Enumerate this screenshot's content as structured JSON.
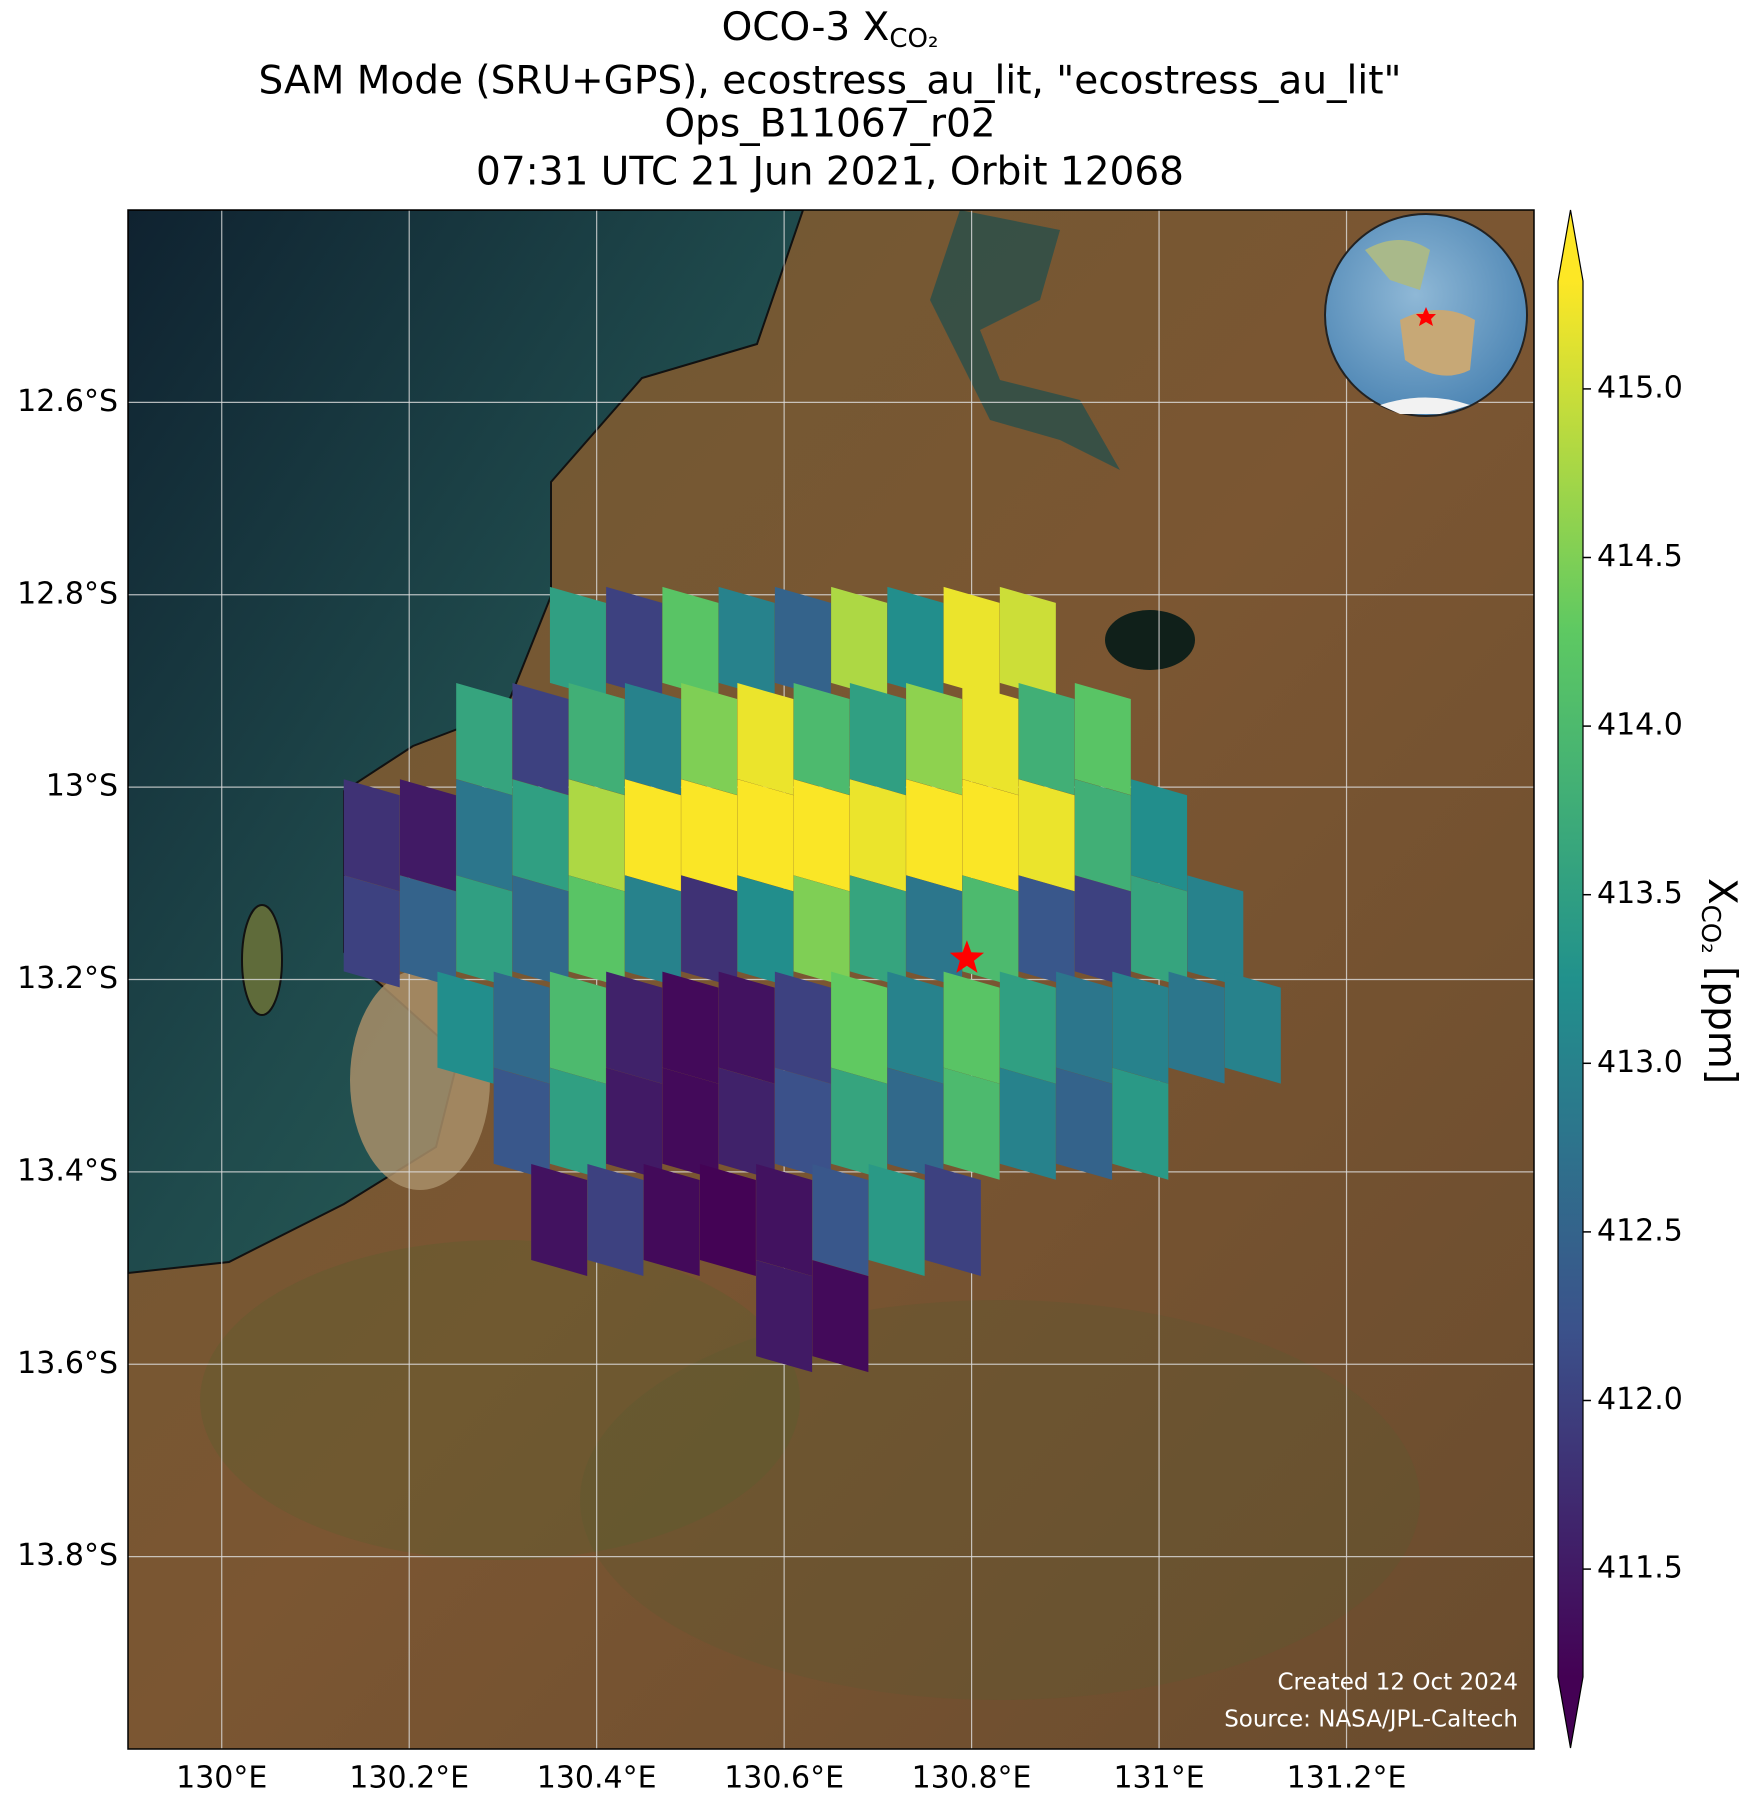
{
  "chart_data": {
    "type": "map",
    "title": [
      "OCO-3 X",
      "CO₂",
      "SAM Mode (SRU+GPS), ecostress_au_lit, \"ecostress_au_lit\"",
      "Ops_B11067_r02",
      "07:31 UTC 21 Jun 2021, Orbit 12068"
    ],
    "xlim": [
      129.9,
      131.4
    ],
    "ylim": [
      -14.0,
      -12.4
    ],
    "xticks": [
      {
        "value": 130.0,
        "label": "130°E"
      },
      {
        "value": 130.2,
        "label": "130.2°E"
      },
      {
        "value": 130.4,
        "label": "130.4°E"
      },
      {
        "value": 130.6,
        "label": "130.6°E"
      },
      {
        "value": 130.8,
        "label": "130.8°E"
      },
      {
        "value": 131.0,
        "label": "131°E"
      },
      {
        "value": 131.2,
        "label": "131.2°E"
      }
    ],
    "yticks": [
      {
        "value": -12.6,
        "label": "12.6°S"
      },
      {
        "value": -12.8,
        "label": "12.8°S"
      },
      {
        "value": -13.0,
        "label": "13°S"
      },
      {
        "value": -13.2,
        "label": "13.2°S"
      },
      {
        "value": -13.4,
        "label": "13.4°S"
      },
      {
        "value": -13.6,
        "label": "13.6°S"
      },
      {
        "value": -13.8,
        "label": "13.8°S"
      }
    ],
    "grid": true,
    "colormap": "viridis",
    "clim": [
      411.18,
      415.32
    ],
    "cticks": [
      {
        "value": 415.0,
        "label": "415.0"
      },
      414.5,
      {
        "value": 414.0,
        "label": "414.0"
      },
      413.5,
      {
        "value": 413.0,
        "label": "413.0"
      },
      412.5,
      {
        "value": 412.0,
        "label": "412.0"
      },
      411.5
    ],
    "colorbar_label": [
      "X",
      "CO₂",
      " [ppm]"
    ],
    "target": {
      "lon": 130.795,
      "lat": -13.178,
      "color": "#ff0000"
    },
    "rows": [
      {
        "lat": -12.85,
        "lon": [
          130.38,
          130.44,
          130.5,
          130.56,
          130.62,
          130.68,
          130.74,
          130.8,
          130.86
        ],
        "values": [
          413.5,
          412.0,
          414.2,
          413.0,
          412.5,
          414.8,
          413.2,
          415.2,
          415.0
        ]
      },
      {
        "lat": -12.95,
        "lon": [
          130.28,
          130.34,
          130.4,
          130.46,
          130.52,
          130.58,
          130.64,
          130.7,
          130.76,
          130.82,
          130.88,
          130.94
        ],
        "values": [
          413.6,
          412.0,
          413.8,
          413.0,
          414.5,
          415.2,
          414.0,
          413.5,
          414.6,
          415.2,
          413.8,
          414.2
        ]
      },
      {
        "lat": -13.05,
        "lon": [
          130.16,
          130.22,
          130.28,
          130.34,
          130.4,
          130.46,
          130.52,
          130.58,
          130.64,
          130.7,
          130.76,
          130.82,
          130.88,
          130.94,
          131.0
        ],
        "values": [
          411.8,
          411.5,
          412.8,
          413.5,
          414.8,
          415.3,
          415.3,
          415.3,
          415.3,
          415.2,
          415.3,
          415.3,
          415.2,
          413.8,
          413.2
        ]
      },
      {
        "lat": -13.15,
        "lon": [
          130.16,
          130.22,
          130.28,
          130.34,
          130.4,
          130.46,
          130.52,
          130.58,
          130.64,
          130.7,
          130.76,
          130.82,
          130.88,
          130.94,
          131.0,
          131.06
        ],
        "values": [
          412.0,
          412.5,
          413.5,
          412.6,
          414.2,
          413.0,
          411.8,
          413.2,
          414.5,
          413.6,
          412.8,
          414.0,
          412.3,
          412.0,
          413.6,
          413.0
        ]
      },
      {
        "lat": -13.25,
        "lon": [
          130.26,
          130.32,
          130.38,
          130.44,
          130.5,
          130.56,
          130.62,
          130.68,
          130.74,
          130.8,
          130.86,
          130.92,
          130.98,
          131.04,
          131.1
        ],
        "values": [
          413.2,
          412.6,
          414.0,
          411.6,
          411.3,
          411.4,
          412.0,
          414.3,
          413.0,
          414.2,
          413.5,
          412.8,
          413.0,
          412.8,
          413.0
        ]
      },
      {
        "lat": -13.35,
        "lon": [
          130.32,
          130.38,
          130.44,
          130.5,
          130.56,
          130.62,
          130.68,
          130.74,
          130.8,
          130.86,
          130.92,
          130.98
        ],
        "values": [
          412.3,
          413.5,
          411.5,
          411.3,
          411.6,
          412.2,
          413.6,
          412.6,
          414.0,
          413.0,
          412.5,
          413.4
        ]
      },
      {
        "lat": -13.45,
        "lon": [
          130.36,
          130.42,
          130.48,
          130.54,
          130.6,
          130.66,
          130.72,
          130.78
        ],
        "values": [
          411.4,
          412.0,
          411.3,
          411.2,
          411.4,
          412.3,
          413.4,
          412.0
        ]
      },
      {
        "lat": -13.55,
        "lon": [
          130.6,
          130.66
        ],
        "values": [
          411.5,
          411.3
        ]
      }
    ],
    "credits": [
      "Created 12 Oct 2024",
      "Source: NASA/JPL-Caltech"
    ]
  }
}
